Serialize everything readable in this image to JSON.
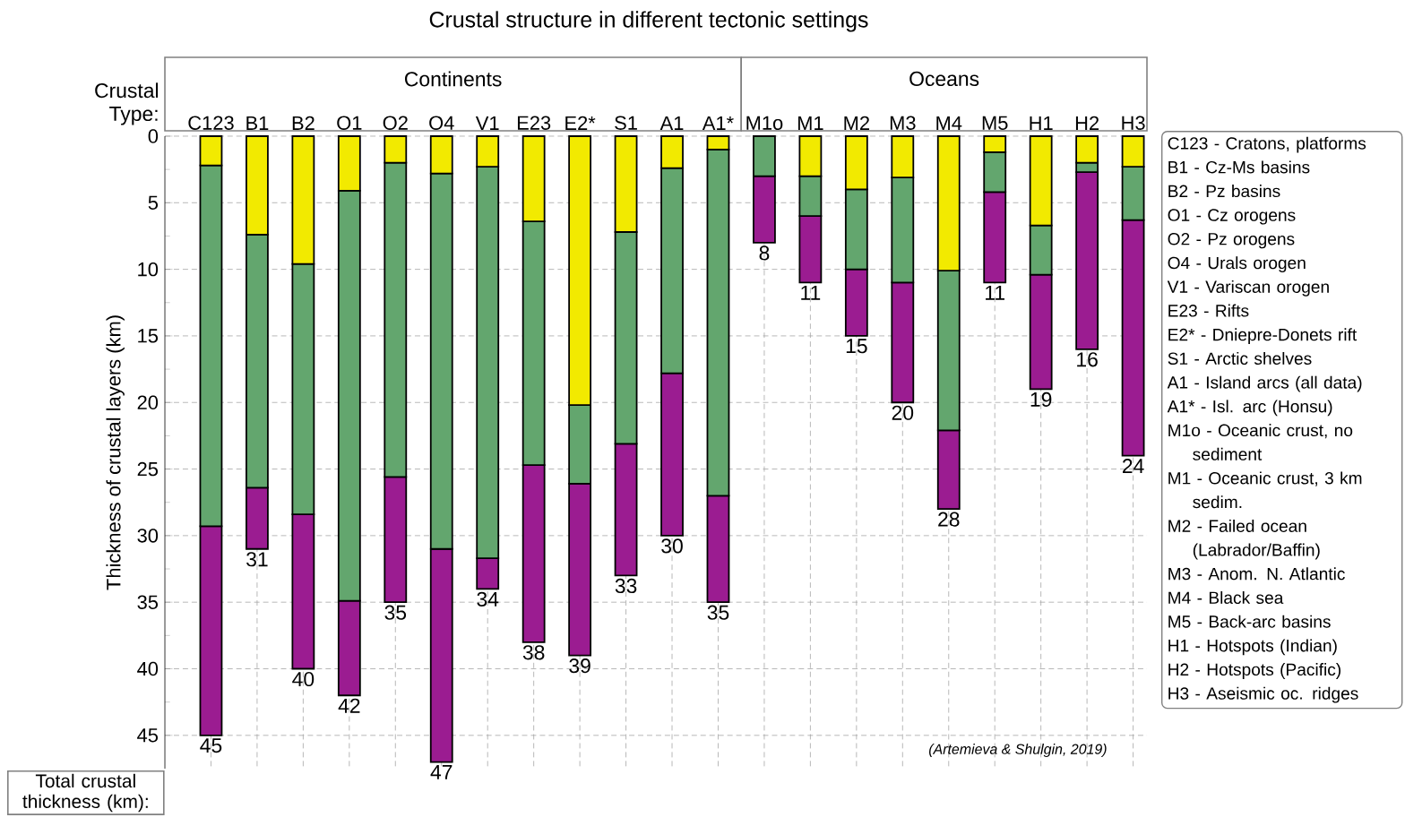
{
  "chart_data": {
    "type": "bar",
    "title": "Crustal structure in different tectonic settings",
    "ylabel": "Thickness of crustal layers (km)",
    "categories": [
      "C123",
      "B1",
      "B2",
      "O1",
      "O2",
      "O4",
      "V1",
      "E23",
      "E2*",
      "S1",
      "A1",
      "A1*",
      "M1o",
      "M1",
      "M2",
      "M3",
      "M4",
      "M5",
      "H1",
      "H2",
      "H3"
    ],
    "stacked": true,
    "series": [
      {
        "color": "#f2ea00",
        "values": [
          2.2,
          7.4,
          9.6,
          4.1,
          2.0,
          2.8,
          2.3,
          6.4,
          20.2,
          7.2,
          2.4,
          1.0,
          0,
          3.0,
          4.0,
          3.1,
          10.1,
          1.2,
          6.7,
          2.0,
          2.3
        ]
      },
      {
        "color": "#63a66e",
        "values": [
          27.1,
          19.0,
          18.8,
          30.8,
          23.6,
          28.2,
          29.4,
          18.3,
          5.9,
          15.9,
          15.4,
          26.0,
          3.0,
          3.0,
          6.0,
          7.9,
          12.0,
          3.0,
          3.7,
          0.7,
          4.0
        ]
      },
      {
        "color": "#9b1c91",
        "values": [
          15.7,
          4.6,
          11.6,
          7.1,
          9.4,
          16.0,
          2.3,
          13.3,
          12.9,
          9.9,
          12.2,
          8.0,
          5.0,
          5.0,
          5.0,
          9.0,
          5.9,
          6.8,
          8.6,
          13.3,
          17.7
        ]
      }
    ],
    "totals": [
      "45",
      "31",
      "40",
      "42",
      "35",
      "47",
      "34",
      "38",
      "39",
      "33",
      "30",
      "35",
      "8",
      "11",
      "15",
      "20",
      "28",
      "11",
      "19",
      "16",
      "24"
    ],
    "ylim": [
      47.5,
      0
    ],
    "yticks": [
      0,
      5,
      10,
      15,
      20,
      25,
      30,
      35,
      40,
      45
    ],
    "grid": true,
    "annotations": [
      "Crustal Type:",
      "Continents",
      "Oceans",
      "Total crustal thickness (km):",
      "(Artemieva & Shulgin, 2019)",
      "C123 - Cratons, platforms",
      "B1 - Cz-Ms basins",
      "B2 - Pz basins",
      "O1 - Cz orogens",
      "O2 - Pz orogens",
      "O4 - Urals orogen",
      "V1 - Variscan orogen",
      "E23 - Rifts",
      "E2* - Dniepre-Donets rift",
      "S1 - Arctic shelves",
      "A1 - Island arcs (all data)",
      "A1* - Isl. arc (Honsu)",
      "M1o - Oceanic crust, no sediment",
      "M1 - Oceanic crust, 3 km sedim.",
      "M2 - Failed ocean (Labrador/Baffin)",
      "M3 - Anom. N. Atlantic",
      "M4 - Black sea",
      "M5 - Back-arc basins",
      "H1 - Hotspots (Indian)",
      "H2 - Hotspots (Pacific)",
      "H3 - Aseismic oc. ridges"
    ]
  }
}
